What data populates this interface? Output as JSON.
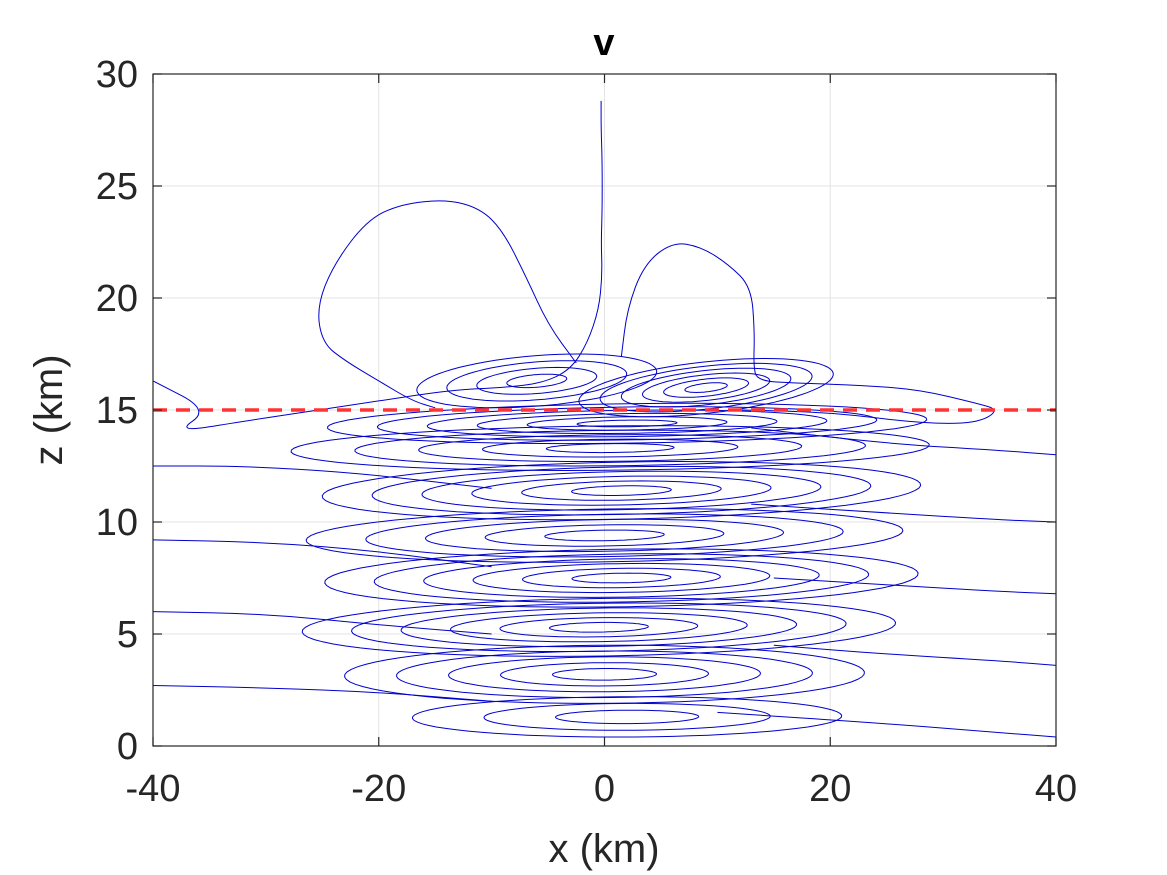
{
  "chart_data": {
    "type": "contour",
    "title": "v",
    "xlabel": "x (km)",
    "ylabel": "z (km)",
    "xlim": [
      -40,
      40
    ],
    "ylim": [
      0,
      30
    ],
    "xticks": [
      -40,
      -20,
      0,
      20,
      40
    ],
    "yticks": [
      0,
      5,
      10,
      15,
      20,
      25,
      30
    ],
    "xtick_labels": [
      "-40",
      "-20",
      "0",
      "20",
      "40"
    ],
    "ytick_labels": [
      "0",
      "5",
      "10",
      "15",
      "20",
      "25",
      "30"
    ],
    "grid": true,
    "contour_color": "#0000cc",
    "reference_line": {
      "z": 15,
      "style": "dashed",
      "color": "#ff3333"
    },
    "cells": [
      {
        "x": 2,
        "z": 1.3,
        "a": 19,
        "b": 0.9,
        "tilt": 1,
        "levels": 3
      },
      {
        "x": 0,
        "z": 3.2,
        "a": 23,
        "b": 1.3,
        "tilt": 1,
        "levels": 5
      },
      {
        "x": -0.5,
        "z": 5.3,
        "a": 26,
        "b": 1.3,
        "tilt": 3,
        "levels": 6
      },
      {
        "x": 1.5,
        "z": 7.5,
        "a": 26,
        "b": 1.3,
        "tilt": 3,
        "levels": 6
      },
      {
        "x": 0,
        "z": 9.4,
        "a": 26,
        "b": 1.2,
        "tilt": 4,
        "levels": 5
      },
      {
        "x": 1.5,
        "z": 11.4,
        "a": 26,
        "b": 1.3,
        "tilt": 4,
        "levels": 6
      },
      {
        "x": 0.5,
        "z": 13.3,
        "a": 28,
        "b": 1.0,
        "tilt": 4,
        "levels": 5
      },
      {
        "x": 2,
        "z": 14.4,
        "a": 26,
        "b": 0.9,
        "tilt": 6,
        "levels": 6
      },
      {
        "x": 9,
        "z": 16.0,
        "a": 10,
        "b": 1.3,
        "tilt": 4,
        "levels": 6
      },
      {
        "x": -6,
        "z": 16.3,
        "a": 10,
        "b": 1.2,
        "tilt": 3,
        "levels": 4
      }
    ],
    "large_contours": [
      {
        "points": [
          [
            -0.3,
            28.8
          ],
          [
            -0.3,
            27.5
          ],
          [
            -0.2,
            26
          ],
          [
            -0.2,
            24
          ],
          [
            -0.3,
            22.5
          ],
          [
            -0.2,
            21
          ],
          [
            -0.5,
            19.5
          ],
          [
            -1.5,
            18
          ],
          [
            -3,
            16.8
          ],
          [
            -5.5,
            16.2
          ],
          [
            -9,
            16
          ],
          [
            -13.5,
            15.9
          ],
          [
            -20,
            15.4
          ],
          [
            -32,
            14.5
          ],
          [
            -38,
            14
          ],
          [
            -35,
            15
          ],
          [
            -40,
            16.3
          ]
        ]
      },
      {
        "points": [
          [
            -2.5,
            17.1
          ],
          [
            -5,
            18.8
          ],
          [
            -7,
            21
          ],
          [
            -9,
            23
          ],
          [
            -11,
            24
          ],
          [
            -14,
            24.4
          ],
          [
            -18,
            24.2
          ],
          [
            -21,
            23.5
          ],
          [
            -24,
            21.5
          ],
          [
            -25.5,
            19.6
          ],
          [
            -25,
            18
          ],
          [
            -23,
            17.2
          ],
          [
            -20,
            16.3
          ],
          [
            -17,
            15.4
          ],
          [
            -15,
            15.1
          ]
        ]
      },
      {
        "points": [
          [
            1.5,
            17.4
          ],
          [
            2,
            19.5
          ],
          [
            3.5,
            21.5
          ],
          [
            6,
            22.5
          ],
          [
            8.5,
            22.3
          ],
          [
            11,
            21.5
          ],
          [
            13,
            20.5
          ],
          [
            13.3,
            18.5
          ],
          [
            13.2,
            17
          ],
          [
            13.5,
            16.3
          ],
          [
            17,
            16.2
          ],
          [
            23,
            16.1
          ],
          [
            28,
            15.9
          ],
          [
            33,
            15.3
          ],
          [
            35,
            15
          ],
          [
            33,
            14.4
          ],
          [
            28,
            14.4
          ],
          [
            20,
            14.9
          ],
          [
            12,
            15
          ]
        ]
      },
      {
        "points": [
          [
            -40,
            12.5
          ],
          [
            -32,
            12.5
          ],
          [
            -22,
            12.2
          ],
          [
            -10,
            11.5
          ]
        ]
      },
      {
        "points": [
          [
            -40,
            9.2
          ],
          [
            -30,
            9.1
          ],
          [
            -20,
            8.7
          ],
          [
            -10,
            8
          ]
        ]
      },
      {
        "points": [
          [
            -40,
            6
          ],
          [
            -30,
            5.9
          ],
          [
            -20,
            5.4
          ],
          [
            -10,
            5
          ]
        ]
      },
      {
        "points": [
          [
            -40,
            2.7
          ],
          [
            -30,
            2.6
          ],
          [
            -20,
            2.4
          ],
          [
            -10,
            2
          ]
        ]
      },
      {
        "points": [
          [
            13,
            14.2
          ],
          [
            25,
            13.5
          ],
          [
            35,
            13.2
          ],
          [
            40,
            13
          ]
        ]
      },
      {
        "points": [
          [
            13,
            10.8
          ],
          [
            25,
            10.4
          ],
          [
            35,
            10.1
          ],
          [
            40,
            10
          ]
        ]
      },
      {
        "points": [
          [
            15,
            7.5
          ],
          [
            25,
            7.2
          ],
          [
            35,
            6.9
          ],
          [
            40,
            6.8
          ]
        ]
      },
      {
        "points": [
          [
            15,
            4.5
          ],
          [
            25,
            4.1
          ],
          [
            35,
            3.8
          ],
          [
            40,
            3.6
          ]
        ]
      },
      {
        "points": [
          [
            10,
            1.5
          ],
          [
            25,
            1
          ],
          [
            35,
            0.6
          ],
          [
            40,
            0.4
          ]
        ]
      }
    ]
  }
}
